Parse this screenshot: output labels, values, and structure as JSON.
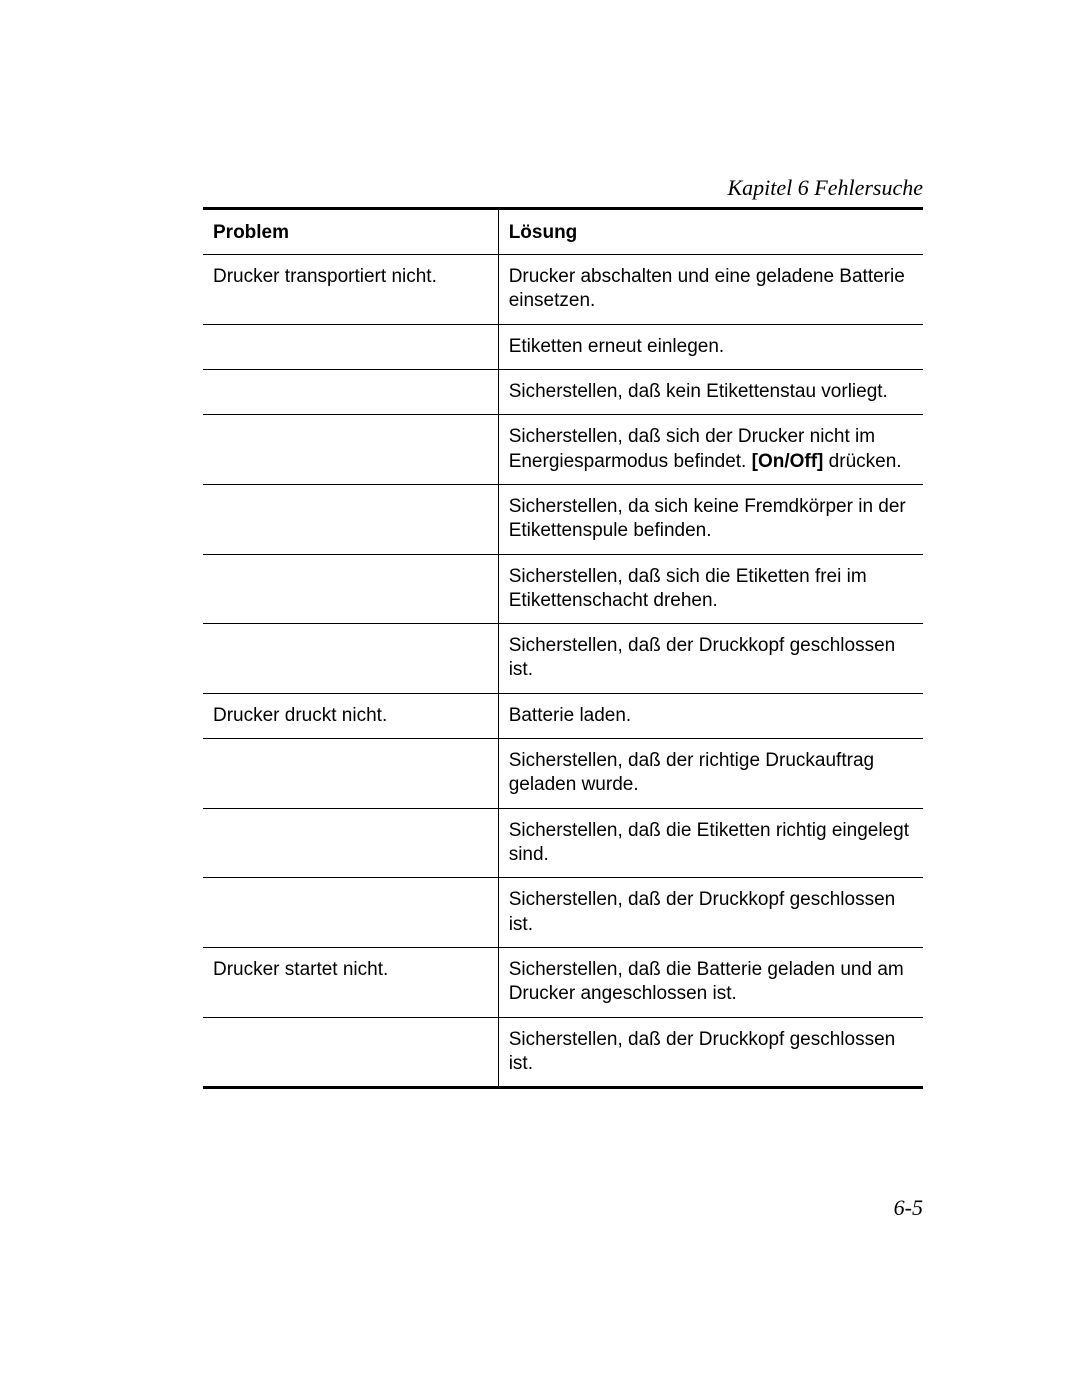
{
  "chapter_header": "Kapitel  6 Fehlersuche",
  "headers": {
    "problem": "Problem",
    "solution": "Lösung"
  },
  "rows": [
    {
      "problem": "Drucker transportiert nicht.",
      "solution": "Drucker abschalten und eine geladene Batterie einsetzen."
    },
    {
      "problem": "",
      "solution": "Etiketten erneut einlegen."
    },
    {
      "problem": "",
      "solution": "Sicherstellen, daß kein Etikettenstau vorliegt."
    },
    {
      "problem": "",
      "solution_pre": "Sicherstellen, daß sich der Drucker nicht im Energiesparmodus befindet. ",
      "solution_bold": "[On/Off]",
      "solution_post": " drücken."
    },
    {
      "problem": "",
      "solution": "Sicherstellen, da sich keine Fremdkörper in der Etikettenspule befinden."
    },
    {
      "problem": "",
      "solution": "Sicherstellen, daß sich die Etiketten frei im Etikettenschacht drehen."
    },
    {
      "problem": "",
      "solution": "Sicherstellen, daß der Druckkopf geschlossen ist."
    },
    {
      "problem": "Drucker druckt nicht.",
      "solution": "Batterie laden."
    },
    {
      "problem": "",
      "solution": "Sicherstellen, daß der richtige Druckauftrag geladen wurde."
    },
    {
      "problem": "",
      "solution": "Sicherstellen, daß die Etiketten richtig eingelegt sind."
    },
    {
      "problem": "",
      "solution": "Sicherstellen, daß der Druckkopf geschlossen ist."
    },
    {
      "problem": "Drucker startet nicht.",
      "solution": "Sicherstellen, daß die Batterie geladen und am Drucker angeschlossen ist."
    },
    {
      "problem": "",
      "solution": "Sicherstellen, daß der Druckkopf geschlossen ist."
    }
  ],
  "page_number": "6-5"
}
